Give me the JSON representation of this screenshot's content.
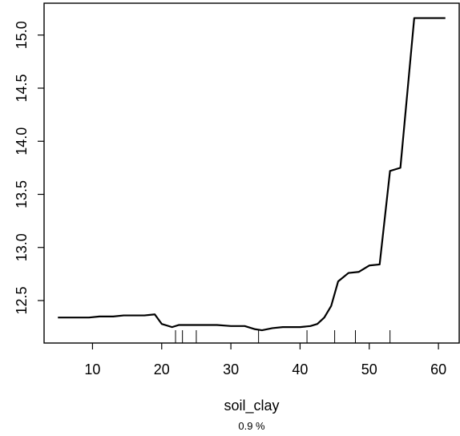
{
  "chart_data": {
    "type": "line",
    "title": "",
    "xlabel": "soil_clay",
    "xlabel_sub": "0.9 %",
    "ylabel": "",
    "xlim": [
      3.0,
      63.0
    ],
    "ylim": [
      12.1,
      15.3
    ],
    "x_ticks": [
      10,
      20,
      30,
      40,
      50,
      60
    ],
    "y_ticks": [
      12.5,
      13.0,
      13.5,
      14.0,
      14.5,
      15.0
    ],
    "x_tick_labels": [
      "10",
      "20",
      "30",
      "40",
      "50",
      "60"
    ],
    "y_tick_labels": [
      "12.5",
      "13.0",
      "13.5",
      "14.0",
      "14.5",
      "15.0"
    ],
    "grid": false,
    "line_color": "#000000",
    "series": [
      {
        "x": [
          5,
          7,
          9.5,
          11,
          13,
          14.5,
          16,
          17.5,
          19,
          20,
          21.5,
          22.5,
          24,
          26,
          28,
          30,
          32,
          33.5,
          34.5,
          36,
          37.5,
          40,
          41.5,
          42.5,
          43.5,
          44.5,
          45.5,
          47,
          48.5,
          50,
          51.5,
          53,
          54.5,
          56.5,
          58,
          60,
          61
        ],
        "y": [
          12.34,
          12.34,
          12.34,
          12.35,
          12.35,
          12.36,
          12.36,
          12.36,
          12.37,
          12.28,
          12.25,
          12.27,
          12.27,
          12.27,
          12.27,
          12.26,
          12.26,
          12.23,
          12.22,
          12.24,
          12.25,
          12.25,
          12.26,
          12.28,
          12.34,
          12.45,
          12.68,
          12.76,
          12.77,
          12.83,
          12.84,
          13.72,
          13.75,
          15.16,
          15.16,
          15.16,
          15.16
        ]
      }
    ],
    "rug": [
      22,
      23,
      25,
      34,
      41,
      45,
      48,
      53
    ]
  }
}
